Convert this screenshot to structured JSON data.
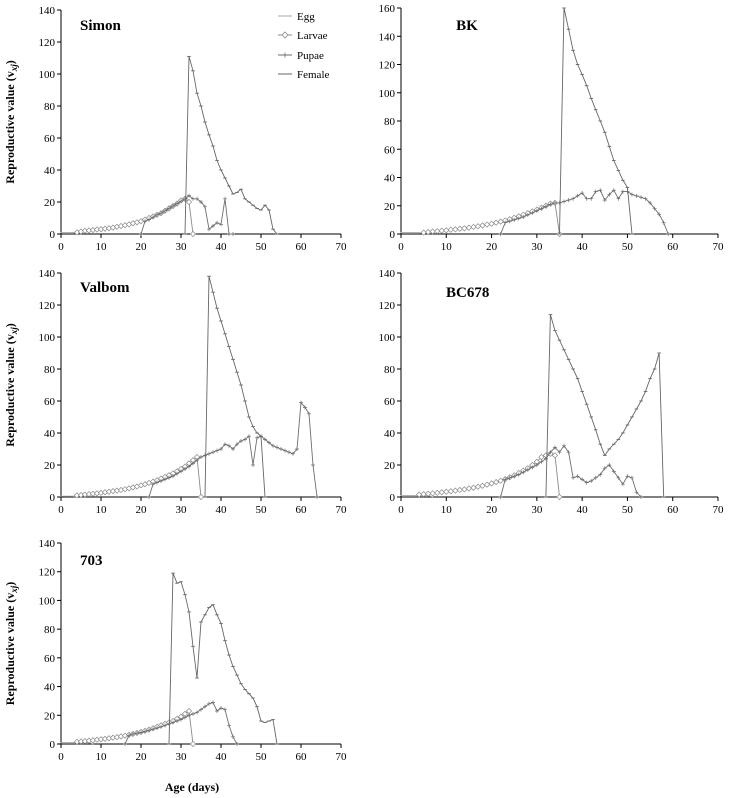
{
  "chart_data": [
    {
      "type": "line",
      "title": "Simon",
      "ylabel": "Reproductive value (v",
      "ylabel_sub": "xj",
      "ylabel_end": ")",
      "xlabel": "",
      "xlim": [
        0,
        70
      ],
      "ylim": [
        0,
        140
      ],
      "xticks": [
        "0",
        "10",
        "20",
        "30",
        "40",
        "50",
        "60",
        "70"
      ],
      "yticks": [
        "0",
        "20",
        "40",
        "60",
        "80",
        "100",
        "120",
        "140"
      ],
      "series": [
        {
          "name": "Egg",
          "x": [
            0,
            1,
            2,
            3,
            4
          ],
          "y": [
            1,
            1,
            1,
            1,
            0
          ]
        },
        {
          "name": "Larvae",
          "x": [
            4,
            5,
            6,
            7,
            8,
            9,
            10,
            11,
            12,
            13,
            14,
            15,
            16,
            17,
            18,
            19,
            20,
            21,
            22,
            23,
            24,
            25,
            26,
            27,
            28,
            29,
            30,
            31,
            32,
            33
          ],
          "y": [
            1,
            1.5,
            2,
            2.2,
            2.5,
            2.8,
            3,
            3.3,
            3.6,
            4,
            4.5,
            5,
            5.5,
            6,
            6.7,
            7.3,
            8,
            9,
            10,
            11,
            12,
            13,
            14.5,
            16,
            17.5,
            19,
            21,
            22,
            20,
            0
          ]
        },
        {
          "name": "Pupae",
          "x": [
            20,
            21,
            22,
            23,
            24,
            25,
            26,
            27,
            28,
            29,
            30,
            31,
            32,
            33,
            34,
            35,
            36,
            37,
            38,
            39,
            40,
            41,
            42,
            43
          ],
          "y": [
            0,
            8,
            9,
            10.5,
            12,
            13,
            14.5,
            16,
            17.5,
            19,
            20.5,
            22,
            24,
            22,
            22,
            20,
            17,
            3,
            5,
            7,
            6,
            22,
            0,
            0
          ]
        },
        {
          "name": "Female",
          "x": [
            31,
            32,
            33,
            34,
            35,
            36,
            37,
            38,
            39,
            40,
            41,
            42,
            43,
            44,
            45,
            46,
            47,
            48,
            49,
            50,
            51,
            52,
            53,
            54
          ],
          "y": [
            0,
            111,
            102,
            88,
            80,
            70,
            62,
            55,
            46,
            40,
            35,
            30,
            25,
            26,
            28,
            22,
            20,
            18,
            16,
            15,
            18,
            15,
            3,
            0
          ]
        }
      ]
    },
    {
      "type": "line",
      "title": "BK",
      "xlim": [
        0,
        70
      ],
      "ylim": [
        0,
        160
      ],
      "xticks": [
        "0",
        "10",
        "20",
        "30",
        "40",
        "50",
        "60",
        "70"
      ],
      "yticks": [
        "0",
        "20",
        "40",
        "60",
        "80",
        "100",
        "120",
        "140",
        "160"
      ],
      "series": [
        {
          "name": "Egg",
          "x": [
            0,
            1,
            2,
            3,
            4,
            5
          ],
          "y": [
            1,
            1,
            1,
            1,
            1,
            0
          ]
        },
        {
          "name": "Larvae",
          "x": [
            5,
            6,
            7,
            8,
            9,
            10,
            11,
            12,
            13,
            14,
            15,
            16,
            17,
            18,
            19,
            20,
            21,
            22,
            23,
            24,
            25,
            26,
            27,
            28,
            29,
            30,
            31,
            32,
            33,
            34,
            35
          ],
          "y": [
            1,
            1.4,
            1.8,
            2,
            2.3,
            2.6,
            3,
            3.3,
            3.7,
            4,
            4.5,
            5,
            5.5,
            6,
            6.7,
            7.3,
            8,
            8.8,
            9.6,
            10.5,
            11.5,
            12.5,
            13.6,
            14.8,
            16,
            17.3,
            18.6,
            20,
            21.5,
            22,
            0
          ]
        },
        {
          "name": "Pupae",
          "x": [
            22,
            23,
            24,
            25,
            26,
            27,
            28,
            29,
            30,
            31,
            32,
            33,
            34,
            35,
            36,
            37,
            38,
            39,
            40,
            41,
            42,
            43,
            44,
            45,
            46,
            47,
            48,
            49,
            50,
            51,
            52,
            53,
            54,
            55,
            56,
            57,
            58,
            59
          ],
          "y": [
            0,
            8,
            9,
            10,
            11,
            12,
            13.5,
            15,
            16.5,
            18,
            19.5,
            21,
            22,
            22,
            23,
            24,
            25,
            27,
            29,
            25,
            25,
            30,
            31,
            24,
            28,
            31,
            25,
            30,
            30,
            28,
            27,
            26,
            25,
            22,
            18,
            14,
            8,
            0
          ]
        },
        {
          "name": "Female",
          "x": [
            35,
            36,
            37,
            38,
            39,
            40,
            41,
            42,
            43,
            44,
            45,
            46,
            47,
            48,
            49,
            50,
            51
          ],
          "y": [
            0,
            160,
            145,
            130,
            120,
            113,
            105,
            96,
            88,
            80,
            72,
            62,
            52,
            45,
            38,
            33,
            0
          ]
        }
      ]
    },
    {
      "type": "line",
      "title": "Valbom",
      "ylabel": "Reproductive value (v",
      "ylabel_sub": "xj",
      "ylabel_end": ")",
      "xlim": [
        0,
        70
      ],
      "ylim": [
        0,
        140
      ],
      "xticks": [
        "0",
        "10",
        "20",
        "30",
        "40",
        "50",
        "60",
        "70"
      ],
      "yticks": [
        "0",
        "20",
        "40",
        "60",
        "80",
        "100",
        "120",
        "140"
      ],
      "series": [
        {
          "name": "Egg",
          "x": [
            0,
            1,
            2,
            3,
            4
          ],
          "y": [
            0.5,
            0.5,
            0.5,
            0.5,
            0
          ]
        },
        {
          "name": "Larvae",
          "x": [
            4,
            5,
            6,
            7,
            8,
            9,
            10,
            11,
            12,
            13,
            14,
            15,
            16,
            17,
            18,
            19,
            20,
            21,
            22,
            23,
            24,
            25,
            26,
            27,
            28,
            29,
            30,
            31,
            32,
            33,
            34,
            35
          ],
          "y": [
            1,
            1.2,
            1.5,
            1.8,
            2,
            2.3,
            2.6,
            3,
            3.3,
            3.7,
            4,
            4.4,
            4.9,
            5.4,
            6,
            6.6,
            7.3,
            8,
            8.8,
            9.6,
            10.5,
            11.5,
            12.5,
            13.6,
            14.8,
            16,
            17.5,
            19,
            21,
            23,
            25,
            0
          ]
        },
        {
          "name": "Pupae",
          "x": [
            22,
            23,
            24,
            25,
            26,
            27,
            28,
            29,
            30,
            31,
            32,
            33,
            34,
            35,
            36,
            37,
            38,
            39,
            40,
            41,
            42,
            43,
            44,
            45,
            46,
            47,
            48,
            49,
            50,
            51,
            52,
            53,
            54,
            55,
            56,
            57,
            58,
            59,
            60,
            61,
            62,
            63,
            64
          ],
          "y": [
            0,
            8,
            9,
            10,
            11,
            12,
            13,
            14.5,
            16,
            17.5,
            19,
            21,
            23,
            25,
            26,
            27,
            28,
            29,
            30,
            33,
            32,
            30,
            33,
            35,
            36,
            38,
            20,
            37,
            38,
            36,
            34,
            32,
            31,
            30,
            29,
            28,
            27,
            30,
            59,
            56,
            52,
            20,
            0
          ]
        },
        {
          "name": "Female",
          "x": [
            36,
            37,
            38,
            39,
            40,
            41,
            42,
            43,
            44,
            45,
            46,
            47,
            48,
            49,
            50,
            51
          ],
          "y": [
            0,
            138,
            128,
            118,
            110,
            102,
            94,
            86,
            78,
            70,
            60,
            50,
            44,
            40,
            38,
            0
          ]
        }
      ]
    },
    {
      "type": "line",
      "title": "BC678",
      "xlim": [
        0,
        70
      ],
      "ylim": [
        0,
        140
      ],
      "xticks": [
        "0",
        "10",
        "20",
        "30",
        "40",
        "50",
        "60",
        "70"
      ],
      "yticks": [
        "0",
        "20",
        "40",
        "60",
        "80",
        "100",
        "120",
        "140"
      ],
      "series": [
        {
          "name": "Egg",
          "x": [
            0,
            1,
            2,
            3,
            4,
            5,
            6,
            7
          ],
          "y": [
            1,
            1,
            1,
            1,
            1,
            1,
            1,
            0
          ]
        },
        {
          "name": "Larvae",
          "x": [
            4,
            5,
            6,
            7,
            8,
            9,
            10,
            11,
            12,
            13,
            14,
            15,
            16,
            17,
            18,
            19,
            20,
            21,
            22,
            23,
            24,
            25,
            26,
            27,
            28,
            29,
            30,
            31,
            32,
            33,
            34,
            35
          ],
          "y": [
            1.5,
            1.8,
            2,
            2.3,
            2.6,
            3,
            3.3,
            3.6,
            4,
            4.4,
            4.8,
            5.3,
            5.8,
            6.4,
            7,
            7.7,
            8.5,
            9.3,
            10.2,
            11.2,
            12.3,
            13.5,
            15,
            16.5,
            18,
            20,
            22,
            25,
            26,
            27,
            26,
            0
          ]
        },
        {
          "name": "Pupae",
          "x": [
            22,
            23,
            24,
            25,
            26,
            27,
            28,
            29,
            30,
            31,
            32,
            33,
            34,
            35,
            36,
            37,
            38,
            39,
            40,
            41,
            42,
            43,
            44,
            45,
            46,
            47,
            48,
            49,
            50,
            51,
            52,
            53
          ],
          "y": [
            0,
            11,
            12,
            13,
            14,
            15.5,
            17,
            18.5,
            20,
            22,
            24,
            28,
            31,
            28,
            32,
            28,
            12,
            13,
            11,
            9,
            10,
            12,
            14,
            18,
            20,
            16,
            12,
            8,
            13,
            12,
            3,
            0
          ]
        },
        {
          "name": "Female",
          "x": [
            32,
            33,
            34,
            35,
            36,
            37,
            38,
            39,
            40,
            41,
            42,
            43,
            44,
            45,
            46,
            47,
            48,
            49,
            50,
            51,
            52,
            53,
            54,
            55,
            56,
            57,
            58
          ],
          "y": [
            0,
            114,
            104,
            98,
            92,
            86,
            80,
            74,
            66,
            58,
            50,
            42,
            33,
            26,
            30,
            33,
            36,
            40,
            45,
            50,
            55,
            60,
            66,
            74,
            80,
            90,
            0
          ]
        }
      ]
    },
    {
      "type": "line",
      "title": "703",
      "ylabel": "Reproductive value (v",
      "ylabel_sub": "xj",
      "ylabel_end": ")",
      "xlabel": "Age (days)",
      "xlim": [
        0,
        70
      ],
      "ylim": [
        0,
        140
      ],
      "xticks": [
        "0",
        "10",
        "20",
        "30",
        "40",
        "50",
        "60",
        "70"
      ],
      "yticks": [
        "0",
        "20",
        "40",
        "60",
        "80",
        "100",
        "120",
        "140"
      ],
      "series": [
        {
          "name": "Egg",
          "x": [
            0,
            1,
            2,
            3,
            4,
            5,
            6,
            7,
            8
          ],
          "y": [
            1,
            1,
            1,
            1,
            1,
            1,
            1,
            1,
            0
          ]
        },
        {
          "name": "Larvae",
          "x": [
            4,
            5,
            6,
            7,
            8,
            9,
            10,
            11,
            12,
            13,
            14,
            15,
            16,
            17,
            18,
            19,
            20,
            21,
            22,
            23,
            24,
            25,
            26,
            27,
            28,
            29,
            30,
            31,
            32,
            33
          ],
          "y": [
            1.5,
            1.8,
            2,
            2.3,
            2.6,
            3,
            3.3,
            3.6,
            4,
            4.4,
            4.8,
            5.3,
            5.8,
            6.4,
            7,
            7.7,
            8.4,
            9.2,
            10,
            11,
            12,
            13,
            14,
            15,
            16,
            17.5,
            19,
            21,
            23,
            0
          ]
        },
        {
          "name": "Pupae",
          "x": [
            16,
            17,
            18,
            19,
            20,
            21,
            22,
            23,
            24,
            25,
            26,
            27,
            28,
            29,
            30,
            31,
            32,
            33,
            34,
            35,
            36,
            37,
            38,
            39,
            40,
            41,
            42,
            43,
            44
          ],
          "y": [
            0,
            6,
            7,
            7.5,
            8,
            8.8,
            9.6,
            10.4,
            11.2,
            12,
            13,
            14,
            15,
            16,
            17,
            18.5,
            20,
            21,
            22,
            24,
            26,
            28,
            29,
            23,
            25,
            24,
            13,
            5,
            0
          ]
        },
        {
          "name": "Female",
          "x": [
            27,
            28,
            29,
            30,
            31,
            32,
            33,
            34,
            35,
            36,
            37,
            38,
            39,
            40,
            41,
            42,
            43,
            44,
            45,
            46,
            47,
            48,
            49,
            50,
            51,
            52,
            53,
            54
          ],
          "y": [
            0,
            119,
            112,
            113,
            104,
            92,
            68,
            46,
            85,
            90,
            95,
            97,
            90,
            84,
            72,
            62,
            54,
            48,
            42,
            38,
            35,
            32,
            26,
            16,
            15,
            16,
            17,
            0
          ]
        }
      ]
    }
  ],
  "legend": {
    "items": [
      "Egg",
      "Larvae",
      "Pupae",
      "Female"
    ]
  },
  "colors": {
    "egg": "#a8a8a8",
    "larvae": "#8a8a8a",
    "pupae": "#6e6e6e",
    "female": "#666666",
    "axis": "#000000"
  },
  "markers": {
    "egg": "none",
    "larvae": "open-diamond",
    "pupae": "plus",
    "female": "dash"
  }
}
